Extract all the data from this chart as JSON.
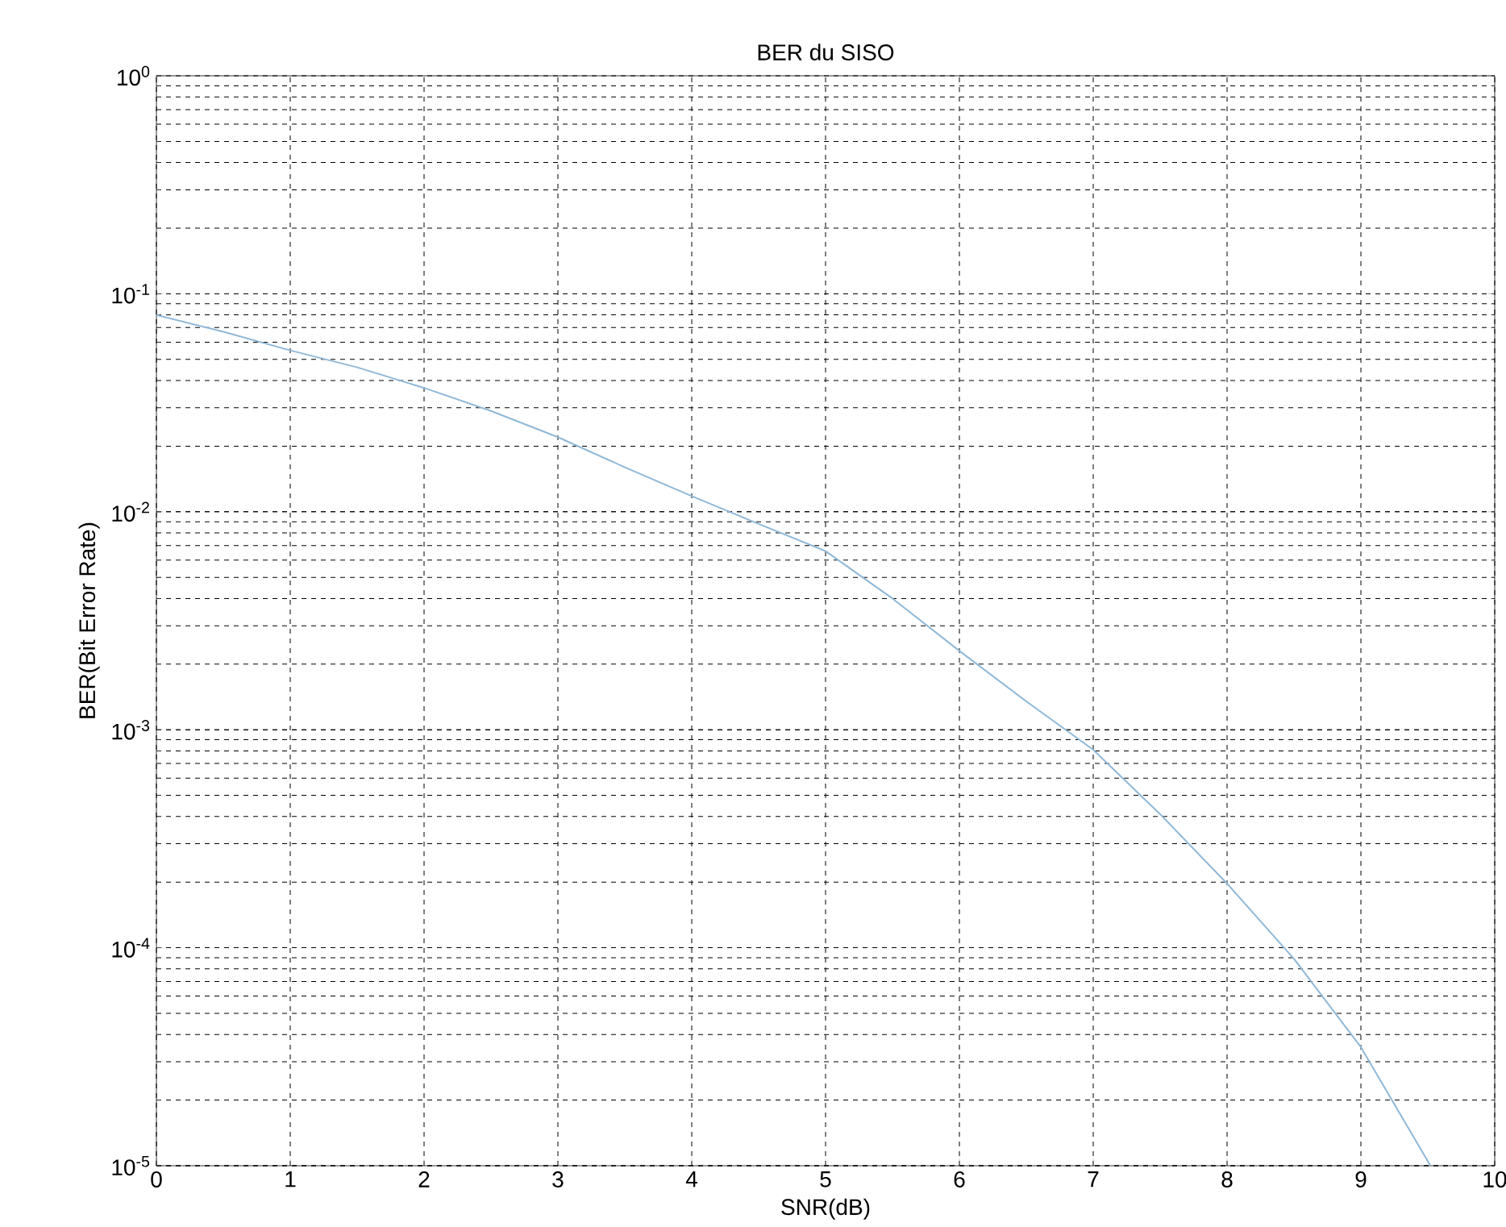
{
  "chart_data": {
    "type": "line",
    "title": "BER du SISO",
    "xlabel": "SNR(dB)",
    "ylabel": "BER(Bit Error Rate)",
    "x": [
      0,
      0.5,
      1,
      1.5,
      2,
      2.5,
      3,
      3.5,
      4,
      4.5,
      5,
      5.5,
      6,
      6.5,
      7,
      7.5,
      8,
      8.5,
      9,
      9.52
    ],
    "series": [
      {
        "color": "#8fb8d8",
        "values": [
          0.08,
          0.067,
          0.055,
          0.046,
          0.037,
          0.029,
          0.022,
          0.016,
          0.0118,
          0.0088,
          0.0066,
          0.004,
          0.0023,
          0.00135,
          0.00081,
          0.00041,
          0.000197,
          8.9e-05,
          3.5e-05,
          1e-05
        ]
      }
    ],
    "xlim": [
      0,
      10
    ],
    "ylim": [
      1e-05,
      1
    ],
    "xticks": [
      0,
      1,
      2,
      3,
      4,
      5,
      6,
      7,
      8,
      9,
      10
    ],
    "yticks": [
      {
        "value": 1e-05,
        "label": "10$^{-5}$"
      },
      {
        "value": 0.0001,
        "label": "10$^{-4}$"
      },
      {
        "value": 0.001,
        "label": "10$^{-3}$"
      },
      {
        "value": 0.01,
        "label": "10$^{-2}$"
      },
      {
        "value": 0.1,
        "label": "10$^{-1}$"
      },
      {
        "value": 1,
        "label": "10$^{0}$"
      }
    ],
    "log": true,
    "grid": true,
    "line_style": "solid",
    "marker": "none"
  }
}
